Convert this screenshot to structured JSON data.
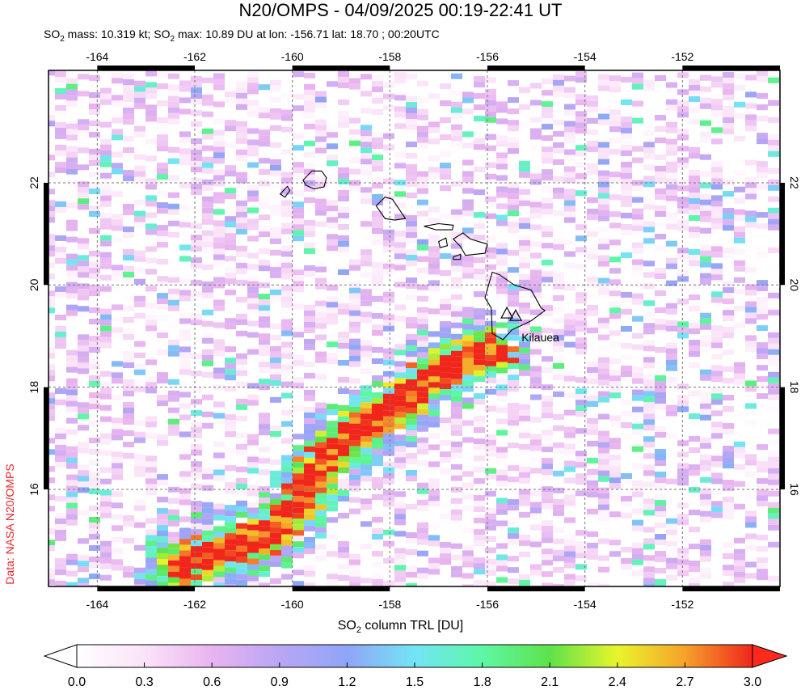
{
  "title": "N20/OMPS - 04/09/2025 00:19-22:41 UT",
  "subtitle": {
    "so2_prefix": "SO",
    "so2_sub": "2",
    "mass_text": " mass: 10.319 kt; SO",
    "max_text": " max: 10.89 DU at lon: -156.71 lat: 18.70 ; 00:20UTC"
  },
  "side_credit": "Data: NASA N20/OMPS",
  "map": {
    "lon_range": [
      -165,
      -150
    ],
    "lat_range": [
      14.1,
      24.2
    ],
    "lon_ticks": [
      -164,
      -162,
      -160,
      -158,
      -156,
      -154,
      -152
    ],
    "lat_ticks": [
      16,
      18,
      20,
      22
    ],
    "lon_tick_labels": [
      "-164",
      "-162",
      "-160",
      "-158",
      "-156",
      "-154",
      "-152"
    ],
    "lat_tick_labels": [
      "16",
      "18",
      "20",
      "22"
    ],
    "volcano_label": "Kilauea",
    "volcano_lon": -155.3,
    "volcano_lat": 18.9,
    "volcanoes": [
      {
        "lon": -155.6,
        "lat": 19.45
      },
      {
        "lon": -155.42,
        "lat": 19.4
      }
    ]
  },
  "colorbar": {
    "label_prefix": "SO",
    "label_sub": "2",
    "label_suffix": " column TRL [DU]",
    "min": 0.0,
    "max": 3.0,
    "tick_labels": [
      "0.0",
      "0.3",
      "0.6",
      "0.9",
      "1.2",
      "1.5",
      "1.8",
      "2.1",
      "2.4",
      "2.7",
      "3.0"
    ],
    "colors": [
      "#ffffff",
      "#fbe3f8",
      "#e8b4f0",
      "#b9a6f4",
      "#8fa5f7",
      "#73e4f5",
      "#5ef7a6",
      "#5ee24a",
      "#e9f52b",
      "#f5a22b",
      "#f0261b",
      "#ff2a1b"
    ]
  }
}
